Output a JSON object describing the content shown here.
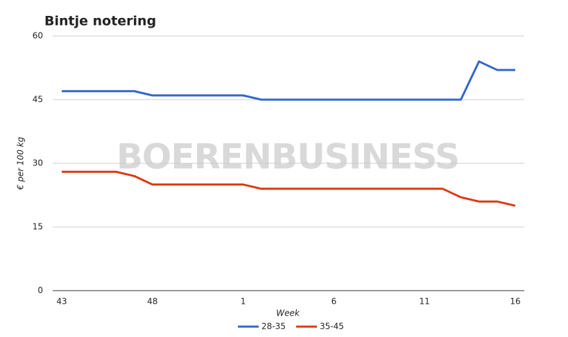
{
  "chart_data": {
    "type": "line",
    "title": "Bintje notering",
    "watermark": "BOERENBUSINESS",
    "x_label": "Week",
    "y_label": "€ per 100 kg",
    "categories": [
      "43",
      null,
      null,
      null,
      null,
      "48",
      null,
      null,
      null,
      null,
      "1",
      null,
      null,
      null,
      null,
      "6",
      null,
      null,
      null,
      null,
      "11",
      null,
      null,
      null,
      null,
      "16"
    ],
    "series": [
      {
        "name": "28-35",
        "color": "#3366cc",
        "values": [
          47,
          47,
          47,
          47,
          47,
          46,
          46,
          46,
          46,
          46,
          46,
          45,
          45,
          45,
          45,
          45,
          45,
          45,
          45,
          45,
          45,
          45,
          45,
          54,
          52,
          52
        ]
      },
      {
        "name": "35-45",
        "color": "#dc3912",
        "values": [
          28,
          28,
          28,
          28,
          27,
          25,
          25,
          25,
          25,
          25,
          25,
          24,
          24,
          24,
          24,
          24,
          24,
          24,
          24,
          24,
          24,
          24,
          22,
          21,
          21,
          20
        ]
      }
    ],
    "ylim": [
      0,
      60
    ],
    "yticks": [
      0,
      15,
      30,
      45,
      60
    ],
    "grid": true,
    "legend": "bottom"
  }
}
